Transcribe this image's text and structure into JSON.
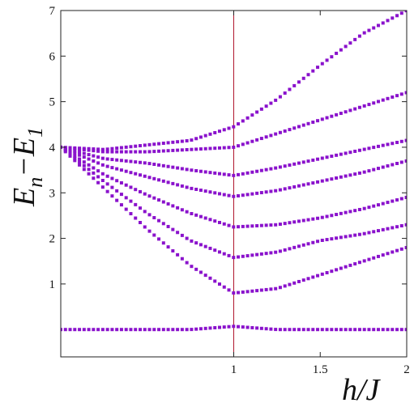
{
  "chart_data": {
    "type": "scatter",
    "title": "",
    "xlabel": "h/J",
    "ylabel": "E_n − E_1",
    "ylabel_main": "E",
    "ylabel_sub1": "n",
    "ylabel_dash": "−E",
    "ylabel_sub2": "1",
    "xlim": [
      0,
      2
    ],
    "ylim": [
      -0.6,
      7
    ],
    "x_ticks": [
      {
        "value": 1,
        "label": "1"
      },
      {
        "value": 1.5,
        "label": "1.5"
      },
      {
        "value": 2,
        "label": "2"
      }
    ],
    "y_ticks": [
      {
        "value": 1,
        "label": "1"
      },
      {
        "value": 2,
        "label": "2"
      },
      {
        "value": 3,
        "label": "3"
      },
      {
        "value": 4,
        "label": "4"
      },
      {
        "value": 5,
        "label": "5"
      },
      {
        "value": 6,
        "label": "6"
      },
      {
        "value": 7,
        "label": "7"
      }
    ],
    "vline": {
      "x": 1,
      "color": "#b0172f"
    },
    "marker_color": "#8a12cc",
    "grid": false,
    "legend": "none",
    "series": [
      {
        "x": [
          0,
          0.25,
          0.5,
          0.75,
          1,
          1.25,
          1.5,
          1.75,
          2
        ],
        "y": [
          0,
          0,
          0,
          0,
          0.07,
          0,
          0,
          0,
          0
        ]
      },
      {
        "x": [
          0,
          0.25,
          0.5,
          0.75,
          1,
          1.25,
          1.5,
          1.75,
          2
        ],
        "y": [
          4,
          3.1,
          2.2,
          1.4,
          0.8,
          0.9,
          1.2,
          1.5,
          1.8
        ]
      },
      {
        "x": [
          0,
          0.25,
          0.5,
          0.75,
          1,
          1.25,
          1.5,
          1.75,
          2
        ],
        "y": [
          4,
          3.25,
          2.55,
          1.95,
          1.58,
          1.7,
          1.95,
          2.1,
          2.3
        ]
      },
      {
        "x": [
          0,
          0.25,
          0.5,
          0.75,
          1,
          1.25,
          1.5,
          1.75,
          2
        ],
        "y": [
          4,
          3.4,
          2.95,
          2.55,
          2.25,
          2.3,
          2.45,
          2.65,
          2.9
        ]
      },
      {
        "x": [
          0,
          0.25,
          0.5,
          0.75,
          1,
          1.25,
          1.5,
          1.75,
          2
        ],
        "y": [
          4,
          3.6,
          3.35,
          3.1,
          2.92,
          3.05,
          3.25,
          3.45,
          3.7
        ]
      },
      {
        "x": [
          0,
          0.25,
          0.5,
          0.75,
          1,
          1.25,
          1.5,
          1.75,
          2
        ],
        "y": [
          4,
          3.75,
          3.65,
          3.5,
          3.38,
          3.55,
          3.75,
          3.95,
          4.15
        ]
      },
      {
        "x": [
          0,
          0.25,
          0.5,
          0.75,
          1,
          1.25,
          1.5,
          1.75,
          2
        ],
        "y": [
          4,
          3.9,
          3.9,
          3.95,
          4.0,
          4.3,
          4.6,
          4.9,
          5.2
        ]
      },
      {
        "x": [
          0,
          0.25,
          0.5,
          0.75,
          1,
          1.25,
          1.5,
          1.75,
          2
        ],
        "y": [
          4,
          3.95,
          4.05,
          4.15,
          4.45,
          5.05,
          5.8,
          6.5,
          7.0
        ]
      }
    ]
  }
}
